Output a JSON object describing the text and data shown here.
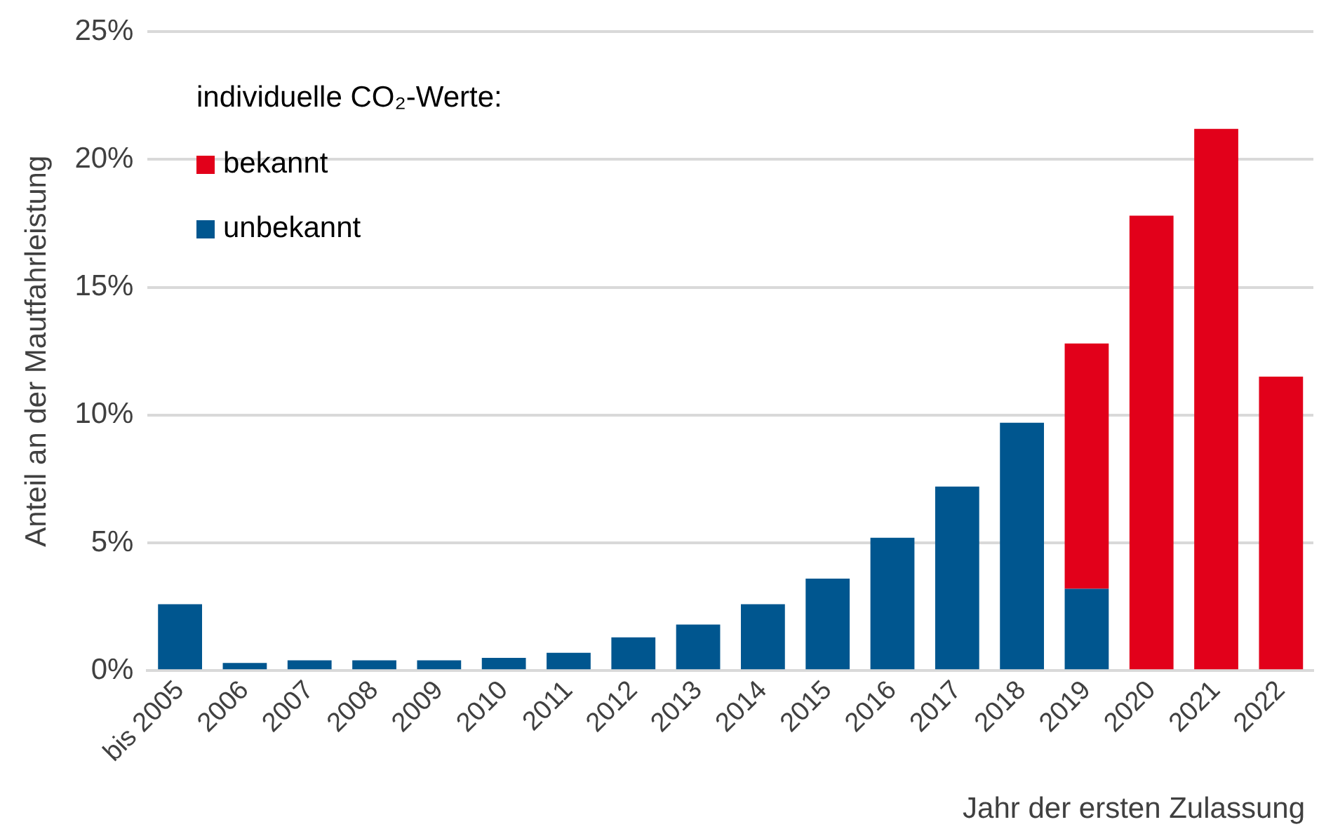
{
  "chart_data": {
    "type": "bar",
    "stacked": true,
    "xlabel": "Jahr der ersten Zulassung",
    "ylabel": "Anteil an der Mautfahrleistung",
    "legend_title": "individuelle  CO₂-Werte:",
    "legend": "top left",
    "grid": "y",
    "categories": [
      "bis 2005",
      "2006",
      "2007",
      "2008",
      "2009",
      "2010",
      "2011",
      "2012",
      "2013",
      "2014",
      "2015",
      "2016",
      "2017",
      "2018",
      "2019",
      "2020",
      "2021",
      "2022"
    ],
    "series": [
      {
        "name": "unbekannt",
        "color": "#00568f",
        "values": [
          2.6,
          0.3,
          0.4,
          0.4,
          0.4,
          0.5,
          0.7,
          1.3,
          1.8,
          2.6,
          3.6,
          5.2,
          7.2,
          9.7,
          3.2,
          null,
          null,
          null
        ]
      },
      {
        "name": "bekannt",
        "color": "#e2001a",
        "values": [
          null,
          null,
          null,
          null,
          null,
          null,
          null,
          null,
          null,
          null,
          null,
          null,
          null,
          null,
          9.6,
          17.8,
          21.2,
          11.5
        ]
      }
    ],
    "ylim": [
      0,
      25
    ],
    "yticks": [
      {
        "value": 0,
        "label": "0%"
      },
      {
        "value": 5,
        "label": "5%"
      },
      {
        "value": 10,
        "label": "10%"
      },
      {
        "value": 15,
        "label": "15%"
      },
      {
        "value": 20,
        "label": "20%"
      },
      {
        "value": 25,
        "label": "25%"
      }
    ]
  }
}
